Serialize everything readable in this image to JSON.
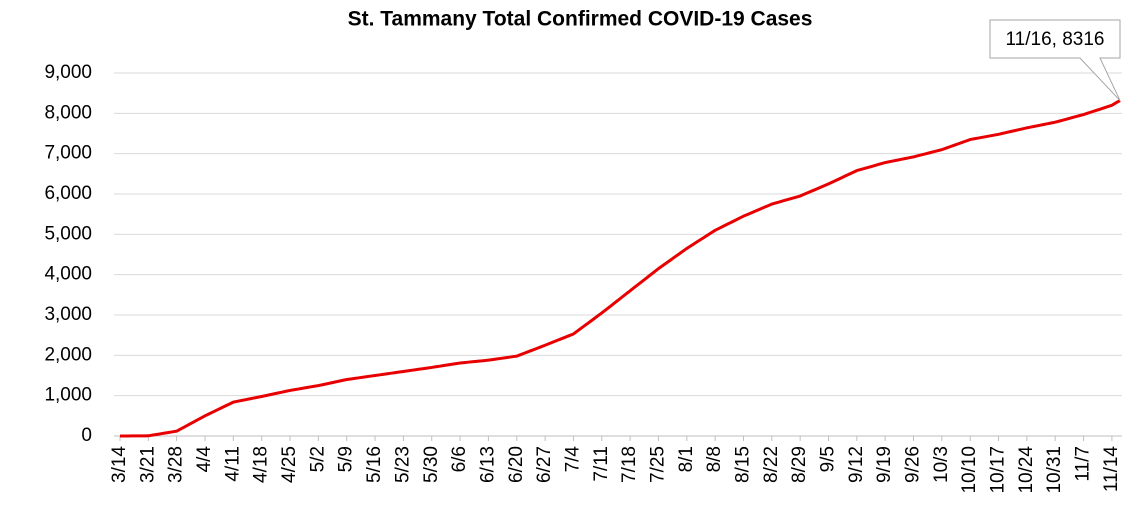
{
  "chart_data": {
    "type": "line",
    "title": "St. Tammany Total Confirmed COVID-19 Cases",
    "annotation": "11/16, 8316",
    "color": "#e80000",
    "grid": true,
    "ylim": [
      0,
      9000
    ],
    "yticks": [
      0,
      {
        "value": 1000,
        "label": "1,000"
      },
      {
        "value": 2000,
        "label": "2,000"
      },
      {
        "value": 3000,
        "label": "3,000"
      },
      {
        "value": 4000,
        "label": "4,000"
      },
      {
        "value": 5000,
        "label": "5,000"
      },
      {
        "value": 6000,
        "label": "6,000"
      },
      {
        "value": 7000,
        "label": "7,000"
      },
      {
        "value": 8000,
        "label": "8,000"
      },
      {
        "value": 9000,
        "label": "9,000"
      }
    ],
    "categories": [
      "3/14",
      null,
      null,
      null,
      null,
      null,
      null,
      "3/21",
      null,
      null,
      null,
      null,
      null,
      null,
      "3/28",
      null,
      null,
      null,
      null,
      null,
      null,
      "4/4",
      null,
      null,
      null,
      null,
      null,
      null,
      "4/11",
      null,
      null,
      null,
      null,
      null,
      null,
      "4/18",
      null,
      null,
      null,
      null,
      null,
      null,
      "4/25",
      null,
      null,
      null,
      null,
      null,
      null,
      "5/2",
      null,
      null,
      null,
      null,
      null,
      null,
      "5/9",
      null,
      null,
      null,
      null,
      null,
      null,
      "5/16",
      null,
      null,
      null,
      null,
      null,
      null,
      "5/23",
      null,
      null,
      null,
      null,
      null,
      null,
      "5/30",
      null,
      null,
      null,
      null,
      null,
      null,
      "6/6",
      null,
      null,
      null,
      null,
      null,
      null,
      "6/13",
      null,
      null,
      null,
      null,
      null,
      null,
      "6/20",
      null,
      null,
      null,
      null,
      null,
      null,
      "6/27",
      null,
      null,
      null,
      null,
      null,
      null,
      "7/4",
      null,
      null,
      null,
      null,
      null,
      null,
      "7/11",
      null,
      null,
      null,
      null,
      null,
      null,
      "7/18",
      null,
      null,
      null,
      null,
      null,
      null,
      "7/25",
      null,
      null,
      null,
      null,
      null,
      null,
      "8/1",
      null,
      null,
      null,
      null,
      null,
      null,
      "8/8",
      null,
      null,
      null,
      null,
      null,
      null,
      "8/15",
      null,
      null,
      null,
      null,
      null,
      null,
      "8/22",
      null,
      null,
      null,
      null,
      null,
      null,
      "8/29",
      null,
      null,
      null,
      null,
      null,
      null,
      "9/5",
      null,
      null,
      null,
      null,
      null,
      null,
      "9/12",
      null,
      null,
      null,
      null,
      null,
      null,
      "9/19",
      null,
      null,
      null,
      null,
      null,
      null,
      "9/26",
      null,
      null,
      null,
      null,
      null,
      null,
      "10/3",
      null,
      null,
      null,
      null,
      null,
      null,
      "10/10",
      null,
      null,
      null,
      null,
      null,
      null,
      "10/17",
      null,
      null,
      null,
      null,
      null,
      null,
      "10/24",
      null,
      null,
      null,
      null,
      null,
      null,
      "10/31",
      null,
      null,
      null,
      null,
      null,
      null,
      "11/7",
      null,
      null,
      null,
      null,
      null,
      null,
      "11/14",
      null,
      null
    ],
    "values": [
      0,
      0,
      1,
      2,
      3,
      4,
      4,
      5,
      21,
      38,
      54,
      71,
      87,
      104,
      120,
      174,
      229,
      283,
      337,
      391,
      446,
      500,
      549,
      597,
      646,
      694,
      743,
      791,
      840,
      860,
      880,
      900,
      920,
      940,
      960,
      980,
      1001,
      1023,
      1044,
      1066,
      1087,
      1109,
      1130,
      1147,
      1164,
      1181,
      1199,
      1216,
      1233,
      1250,
      1271,
      1293,
      1314,
      1336,
      1357,
      1379,
      1400,
      1414,
      1429,
      1443,
      1457,
      1471,
      1486,
      1500,
      1514,
      1529,
      1543,
      1557,
      1571,
      1586,
      1600,
      1614,
      1629,
      1643,
      1657,
      1671,
      1686,
      1700,
      1716,
      1731,
      1747,
      1763,
      1779,
      1794,
      1810,
      1820,
      1830,
      1840,
      1850,
      1860,
      1870,
      1880,
      1894,
      1909,
      1923,
      1937,
      1951,
      1966,
      1980,
      2019,
      2057,
      2096,
      2134,
      2173,
      2211,
      2250,
      2290,
      2330,
      2370,
      2410,
      2450,
      2490,
      2530,
      2604,
      2679,
      2753,
      2827,
      2901,
      2976,
      3050,
      3129,
      3207,
      3286,
      3364,
      3443,
      3521,
      3600,
      3679,
      3757,
      3836,
      3914,
      3993,
      4071,
      4150,
      4221,
      4293,
      4364,
      4436,
      4507,
      4579,
      4650,
      4714,
      4779,
      4843,
      4907,
      4971,
      5036,
      5100,
      5150,
      5200,
      5250,
      5300,
      5350,
      5400,
      5450,
      5493,
      5536,
      5579,
      5621,
      5664,
      5707,
      5750,
      5779,
      5807,
      5836,
      5864,
      5893,
      5921,
      5950,
      5993,
      6036,
      6079,
      6121,
      6164,
      6207,
      6250,
      6297,
      6344,
      6391,
      6439,
      6486,
      6533,
      6580,
      6609,
      6637,
      6666,
      6694,
      6723,
      6751,
      6780,
      6800,
      6820,
      6840,
      6860,
      6880,
      6900,
      6920,
      6946,
      6971,
      6997,
      7023,
      7049,
      7074,
      7100,
      7136,
      7171,
      7207,
      7243,
      7279,
      7314,
      7350,
      7369,
      7387,
      7406,
      7424,
      7443,
      7461,
      7480,
      7503,
      7526,
      7549,
      7571,
      7594,
      7617,
      7640,
      7660,
      7680,
      7700,
      7720,
      7740,
      7760,
      7780,
      7807,
      7834,
      7861,
      7889,
      7916,
      7943,
      7970,
      8003,
      8036,
      8069,
      8101,
      8134,
      8167,
      8200,
      8260,
      8316
    ]
  }
}
